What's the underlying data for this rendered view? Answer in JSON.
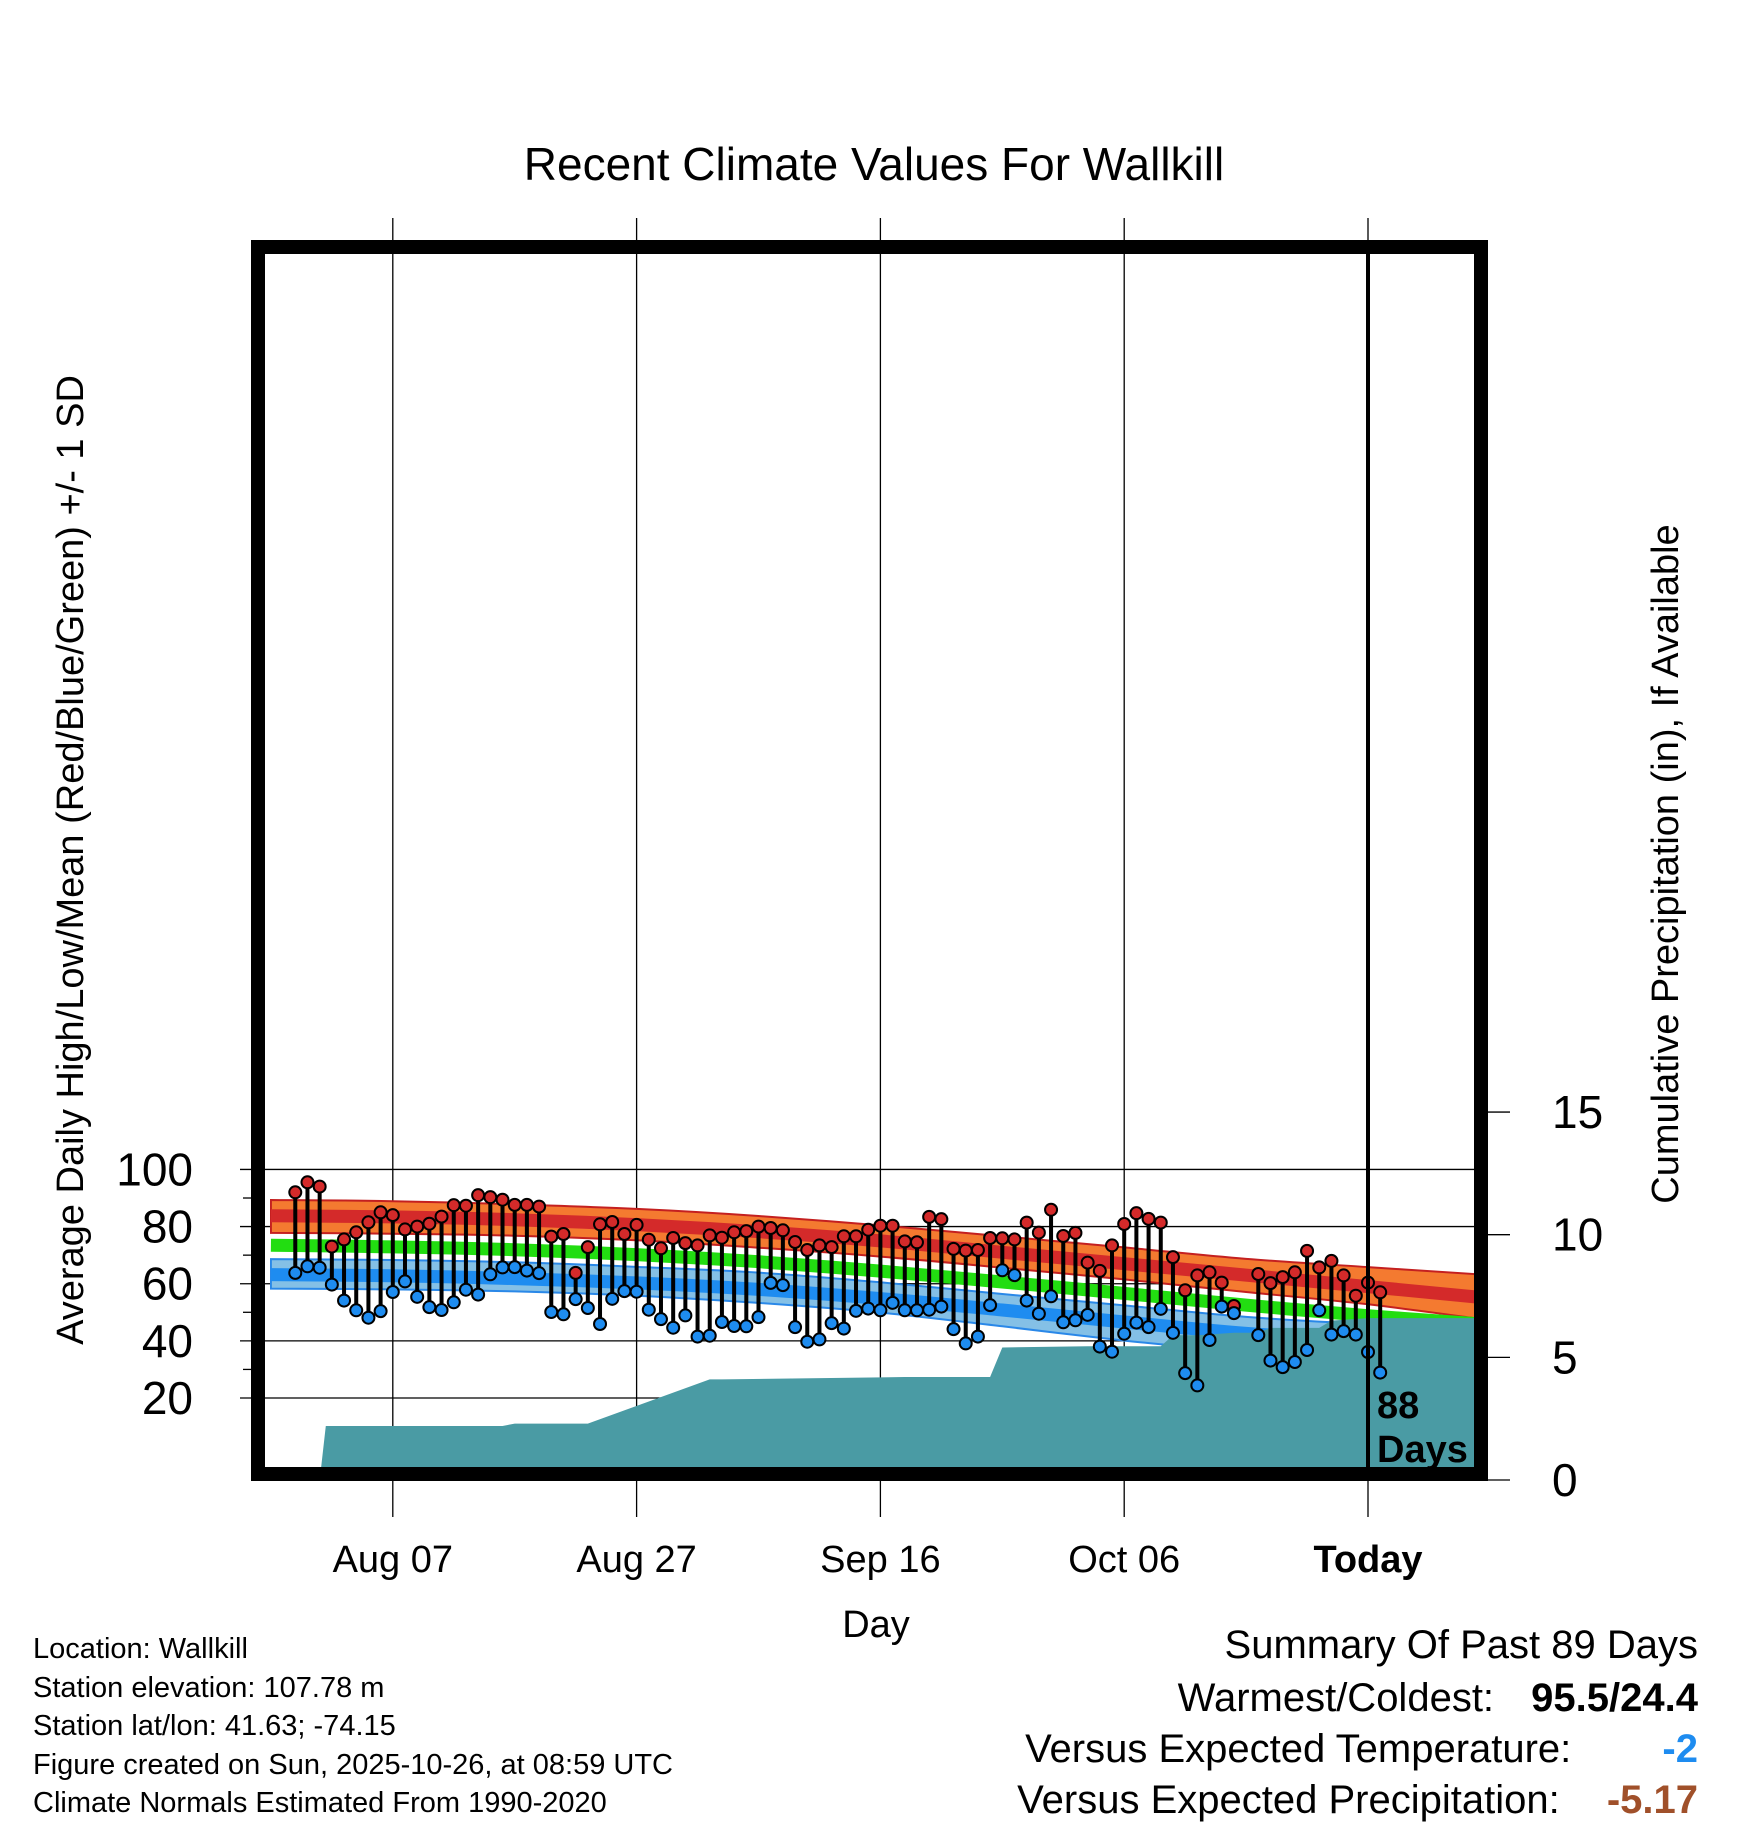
{
  "colors": {
    "high": "#d42a2a",
    "high_band": "#f47a30",
    "low": "#1e8cf0",
    "low_band": "#84c0e6",
    "mean": "#22dd11",
    "precip": "#4a9ba4",
    "temp_dev": "#1e8cf0",
    "precip_dev": "#a0502a"
  },
  "chart_data": {
    "type": "line",
    "title": "Recent Climate Values For Wallkill",
    "xlabel": "Day",
    "ylabel": "Average Daily High/Low/Mean (Red/Blue/Green) +/- 1 SD",
    "y2label": "Cumulative Precipitation (in), If Available",
    "ylim": [
      14.5,
      100
    ],
    "y2lim": [
      0,
      22.5
    ],
    "xlim": [
      -88,
      11
    ],
    "yticks": [
      20,
      40,
      60,
      80,
      100
    ],
    "yticks_minor": [
      30,
      50,
      70,
      90
    ],
    "y2ticks": [
      0,
      5,
      10,
      15
    ],
    "xticks": [
      {
        "day": -80,
        "label": "Aug 07"
      },
      {
        "day": -60,
        "label": "Aug 27"
      },
      {
        "day": -40,
        "label": "Sep 16"
      },
      {
        "day": -20,
        "label": "Oct 06"
      },
      {
        "day": 0,
        "label": "Today"
      }
    ],
    "today_marker": {
      "day": 0,
      "label_line1": "88",
      "label_line2": "Days"
    },
    "normals": {
      "days": [
        -90,
        -80,
        -70,
        -60,
        -50,
        -40,
        -30,
        -20,
        -10,
        0,
        9
      ],
      "high_mean": [
        83.8,
        83.4,
        82.4,
        80.7,
        78.2,
        75.0,
        71.0,
        67.0,
        63.0,
        59.0,
        55.3
      ],
      "high_sd_upper": [
        89.3,
        88.9,
        87.8,
        86.2,
        83.7,
        80.4,
        76.6,
        72.7,
        68.7,
        65.8,
        63.3
      ],
      "high_sd_lower": [
        77.8,
        77.5,
        76.8,
        75.2,
        72.6,
        69.5,
        65.6,
        61.5,
        57.1,
        52.8,
        47.8
      ],
      "mean": [
        73.5,
        72.9,
        71.9,
        70.2,
        67.7,
        64.4,
        60.6,
        56.6,
        52.5,
        48.8,
        46.0
      ],
      "low_mean": [
        63.2,
        62.8,
        61.8,
        60.3,
        58.0,
        54.8,
        50.8,
        46.6,
        42.6,
        39.9,
        37.2
      ],
      "low_sd_upper": [
        68.6,
        68.3,
        67.5,
        65.9,
        63.9,
        60.5,
        56.4,
        52.4,
        48.4,
        45.9,
        44.8
      ],
      "low_sd_lower": [
        58.3,
        58.0,
        57.3,
        55.8,
        53.3,
        49.9,
        45.1,
        40.1,
        36.0,
        32.4,
        28.6
      ]
    },
    "series": [
      {
        "name": "Daily High",
        "values": [
          92.0,
          95.5,
          94.0,
          73.0,
          75.5,
          78.0,
          81.5,
          85.0,
          84.0,
          79.0,
          80.0,
          81.0,
          83.5,
          87.5,
          87.3,
          91.0,
          90.3,
          89.4,
          87.6,
          87.6,
          87.0,
          76.5,
          77.4,
          63.8,
          72.8,
          80.8,
          81.6,
          77.4,
          80.6,
          75.4,
          72.4,
          76.0,
          74.2,
          73.4,
          76.9,
          76.1,
          78.0,
          78.4,
          80.0,
          79.5,
          78.7,
          74.6,
          71.8,
          73.4,
          72.8,
          76.6,
          76.6,
          78.9,
          80.3,
          80.3,
          74.8,
          74.5,
          83.4,
          82.6,
          72.2,
          71.6,
          71.8,
          76.0,
          75.9,
          75.5,
          81.4,
          77.9,
          85.9,
          76.7,
          77.8,
          67.4,
          64.5,
          73.4,
          80.9,
          84.7,
          82.7,
          81.4,
          69.3,
          57.7,
          62.9,
          64.0,
          60.4,
          52.2,
          null,
          63.4,
          60.2,
          62.3,
          64.0,
          71.5,
          65.7,
          68.0,
          62.9,
          55.8,
          60.4,
          57.0
        ]
      },
      {
        "name": "Daily Low",
        "values": [
          63.8,
          66.1,
          65.6,
          59.7,
          54.1,
          50.7,
          48.1,
          50.4,
          57.1,
          60.8,
          55.4,
          51.8,
          50.8,
          53.5,
          57.9,
          56.2,
          63.3,
          65.7,
          65.8,
          64.6,
          63.7,
          50.1,
          49.3,
          54.6,
          51.5,
          45.9,
          54.7,
          57.4,
          57.2,
          50.9,
          47.6,
          44.6,
          48.9,
          41.5,
          41.8,
          46.6,
          45.2,
          45.1,
          48.3,
          60.3,
          59.5,
          44.8,
          39.7,
          40.5,
          46.2,
          44.3,
          50.5,
          51.3,
          50.7,
          53.3,
          50.7,
          50.7,
          50.9,
          52.0,
          44.1,
          39.1,
          41.5,
          52.5,
          64.7,
          63.0,
          54.1,
          49.5,
          55.6,
          46.5,
          47.2,
          49.1,
          38.0,
          36.2,
          42.5,
          46.4,
          44.8,
          51.2,
          42.8,
          28.7,
          24.4,
          40.3,
          52.0,
          49.7,
          null,
          42.0,
          33.1,
          30.8,
          32.6,
          36.8,
          50.7,
          42.2,
          43.4,
          42.2,
          36.1,
          28.9
        ]
      },
      {
        "name": "Cumulative Precipitation",
        "precip_days": [
          -86,
          -85.5,
          -71,
          -70,
          -64,
          -54,
          -53,
          -38,
          -31,
          -30,
          -23,
          -18,
          -17,
          -16,
          -14,
          -11,
          -9,
          -8,
          -7,
          -4,
          -3,
          0,
          9
        ],
        "precip_values": [
          0,
          2.2,
          2.2,
          2.3,
          2.3,
          4.1,
          4.1,
          4.2,
          4.2,
          5.4,
          5.45,
          5.45,
          5.45,
          5.9,
          5.9,
          6.0,
          6.0,
          6.2,
          6.2,
          6.2,
          6.5,
          6.6,
          6.6
        ]
      }
    ]
  },
  "info": {
    "location": "Location: Wallkill",
    "elevation": "Station elevation: 107.78 m",
    "latlon": "Station lat/lon: 41.63; -74.15",
    "created": "Figure created on Sun, 2025-10-26, at 08:59 UTC",
    "normals": "Climate Normals Estimated From 1990-2020"
  },
  "summary": {
    "title": "Summary Of Past 89 Days",
    "warmest_label": "Warmest/Coldest:",
    "warmest_value": "95.5/24.4",
    "temp_label": "Versus Expected Temperature:",
    "temp_value": "-2",
    "precip_label": "Versus Expected Precipitation:",
    "precip_value": "-5.17"
  }
}
